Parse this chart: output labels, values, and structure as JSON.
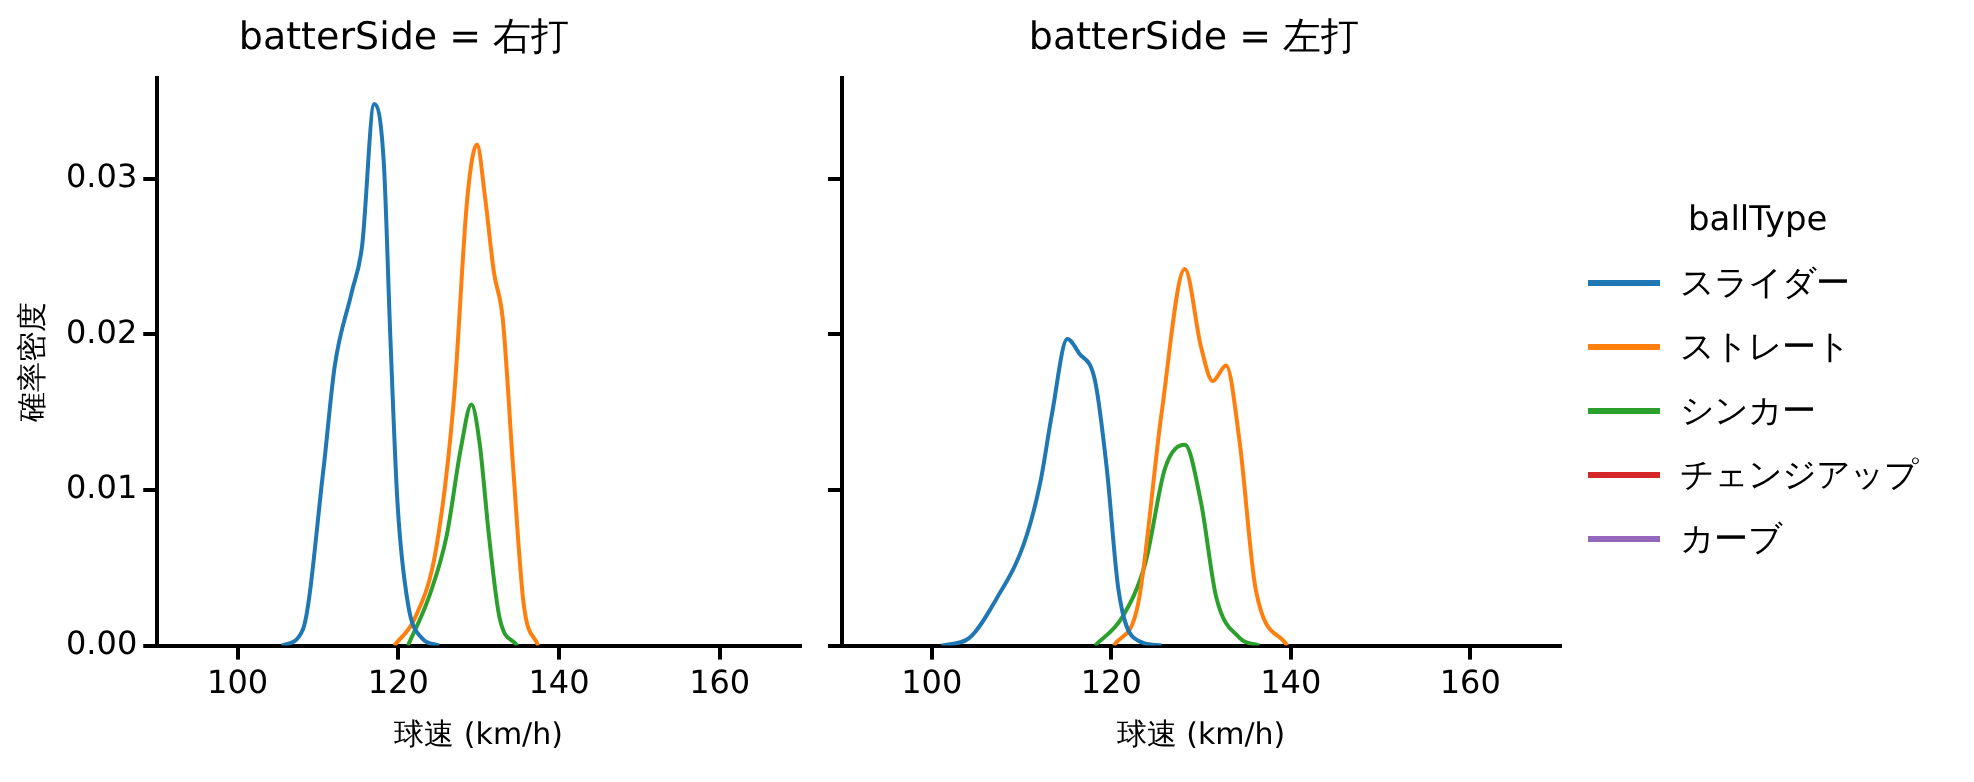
{
  "chart_data": [
    {
      "type": "line",
      "title": "batterSide = 右打",
      "xlabel": "球速 (km/h)",
      "ylabel": "確率密度",
      "xlim": [
        90,
        170
      ],
      "xticks": [
        100,
        120,
        140,
        160
      ],
      "ylim": [
        0,
        0.0365
      ],
      "yticks": [
        {
          "value": 0,
          "label": "0.00"
        },
        0.01,
        0.02,
        0.03
      ],
      "grid": false,
      "legend": false,
      "series": [
        {
          "color": "#1f77b4",
          "x": [
            105.5,
            108.1,
            110.7,
            112.1,
            114.2,
            115.5,
            117.0,
            118.2,
            119.0,
            119.9,
            121.2,
            122.9,
            125.1
          ],
          "values": [
            0,
            0.001,
            0.0114,
            0.018,
            0.0227,
            0.0257,
            0.0348,
            0.031,
            0.02,
            0.0092,
            0.0027,
            0.0005,
            0
          ]
        },
        {
          "color": "#ff7f0e",
          "x": [
            119.5,
            122.1,
            124.7,
            126.9,
            128.6,
            129.8,
            130.8,
            131.9,
            133.0,
            134.3,
            135.6,
            137.4
          ],
          "values": [
            0,
            0.0018,
            0.0062,
            0.0157,
            0.0288,
            0.0322,
            0.0288,
            0.024,
            0.021,
            0.0114,
            0.0027,
            0
          ]
        },
        {
          "color": "#2ca02c",
          "x": [
            121.2,
            123.8,
            126.0,
            127.8,
            129.1,
            130.1,
            131.3,
            132.6,
            134.8
          ],
          "values": [
            0,
            0.0031,
            0.007,
            0.0127,
            0.0155,
            0.0131,
            0.007,
            0.0018,
            0
          ]
        }
      ]
    },
    {
      "type": "line",
      "title": "batterSide = 左打",
      "xlabel": "球速 (km/h)",
      "legend_title": "ballType",
      "xlim": [
        90,
        170
      ],
      "xticks": [
        100,
        120,
        140,
        160
      ],
      "ylim": [
        0,
        0.0365
      ],
      "yticks": [
        0,
        0.01,
        0.02,
        0.03
      ],
      "tick_labels": "x",
      "grid": false,
      "legend": "right",
      "series": [
        {
          "name": "スライダー",
          "color": "#1f77b4",
          "x": [
            101.1,
            104.2,
            107.2,
            110.3,
            112.1,
            113.4,
            115.1,
            116.4,
            118.2,
            119.5,
            120.8,
            122.5,
            125.6
          ],
          "values": [
            0,
            0.0005,
            0.003,
            0.0066,
            0.0105,
            0.0149,
            0.0197,
            0.0188,
            0.017,
            0.0114,
            0.0036,
            0.0005,
            0
          ]
        },
        {
          "name": "ストレート",
          "color": "#ff7f0e",
          "x": [
            120.3,
            123.0,
            125.6,
            128.2,
            130.0,
            131.3,
            132.8,
            134.3,
            136.1,
            139.6
          ],
          "values": [
            0,
            0.0027,
            0.0149,
            0.0242,
            0.0192,
            0.017,
            0.018,
            0.0131,
            0.0036,
            0
          ]
        },
        {
          "name": "シンカー",
          "color": "#2ca02c",
          "x": [
            118.2,
            121.2,
            123.8,
            126.0,
            128.2,
            130.0,
            131.7,
            134.3,
            136.5
          ],
          "values": [
            0,
            0.0018,
            0.0053,
            0.0114,
            0.0129,
            0.0092,
            0.0031,
            0.0005,
            0
          ]
        },
        {
          "name": "チェンジアップ",
          "color": "#d62728"
        },
        {
          "name": "カーブ",
          "color": "#9467bd"
        }
      ]
    }
  ]
}
